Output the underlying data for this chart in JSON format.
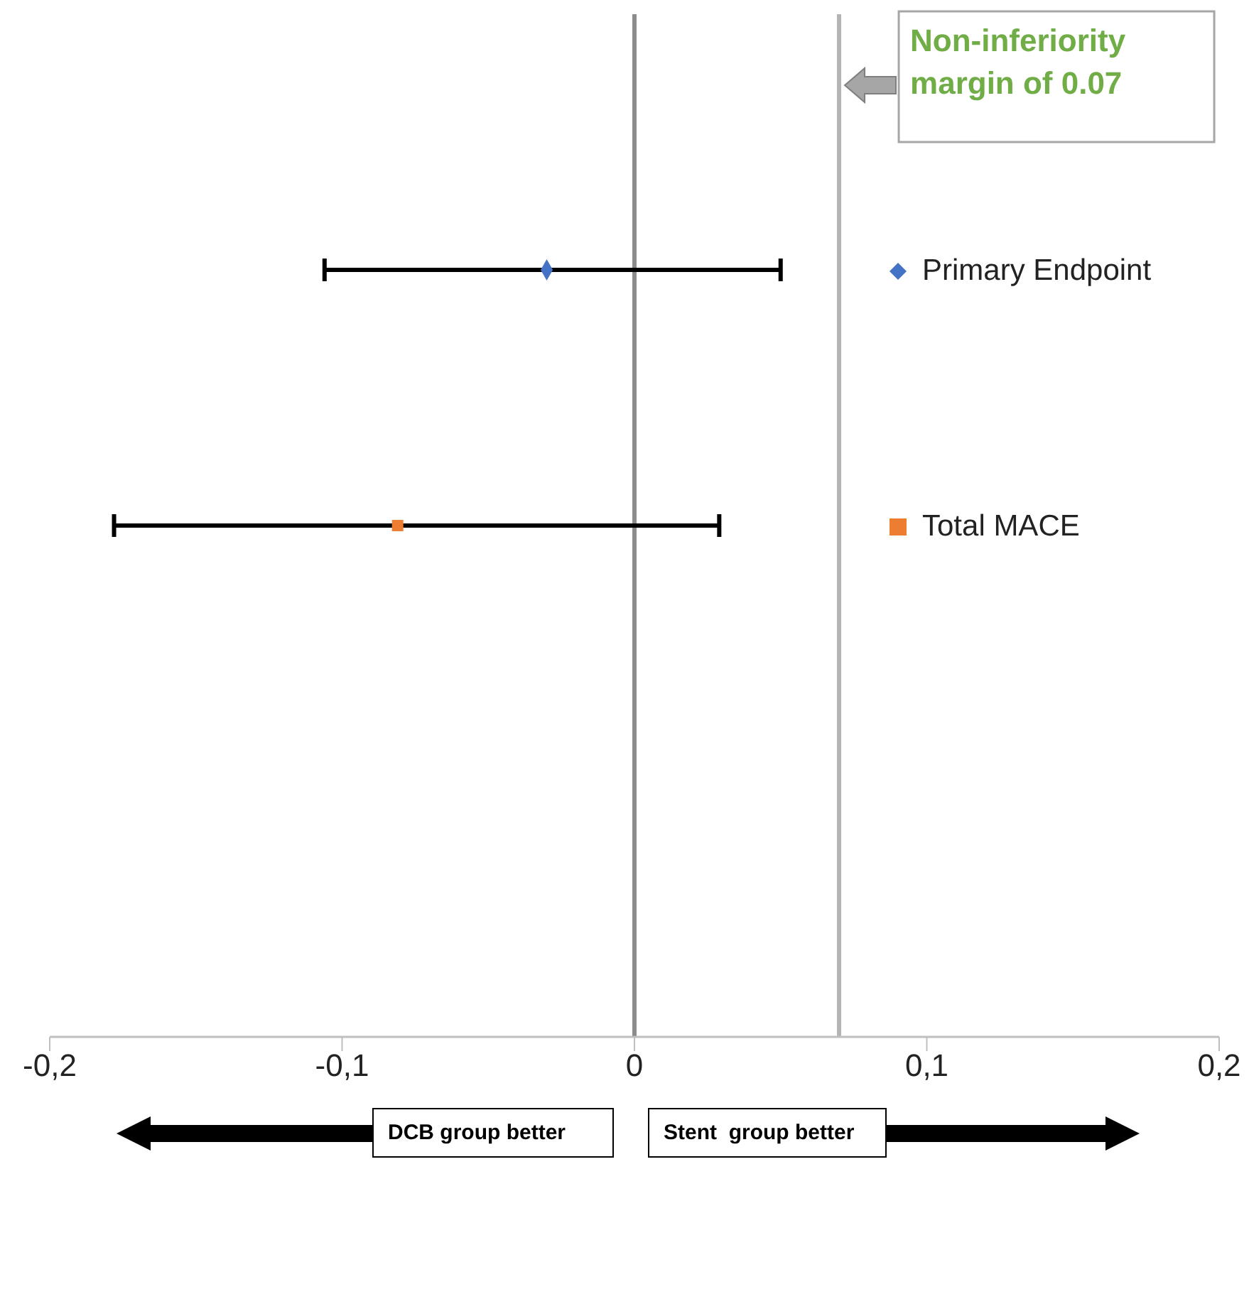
{
  "chart_data": {
    "type": "scatter",
    "orientation": "horizontal",
    "categories": [
      null,
      null,
      null,
      null,
      null
    ],
    "xlim": [
      -0.2,
      0.2
    ],
    "xticks": [
      {
        "value": -0.2,
        "label": "-0,2"
      },
      {
        "value": -0.1,
        "label": "-0,1"
      },
      {
        "value": 0,
        "label": "0"
      },
      {
        "value": 0.1,
        "label": "0,1"
      },
      {
        "value": 0.2,
        "label": "0,2"
      }
    ],
    "grid": false,
    "legend": "right",
    "series": [
      {
        "name": "Primary Endpoint",
        "color": "#4472c4",
        "marker": "diamond",
        "values": [
          null,
          -0.03,
          null,
          null,
          null
        ],
        "errors": [
          null,
          [
            -0.106,
            0.05
          ],
          null,
          null,
          null
        ]
      },
      {
        "name": "Total MACE",
        "color": "#ed7d31",
        "marker": "square",
        "values": [
          null,
          null,
          -0.081,
          null,
          null
        ],
        "errors": [
          null,
          null,
          [
            -0.178,
            0.029
          ],
          null,
          null
        ]
      }
    ],
    "ref_lines": [
      {
        "axis": "x",
        "value": 0,
        "label": null,
        "color": "#8c8c8c"
      },
      {
        "axis": "x",
        "value": 0.07,
        "label": "Non-inferiority margin of 0.07",
        "color": "#b4b4b4"
      }
    ],
    "annotations": [
      "DCB group better",
      "Stent  group better"
    ]
  }
}
